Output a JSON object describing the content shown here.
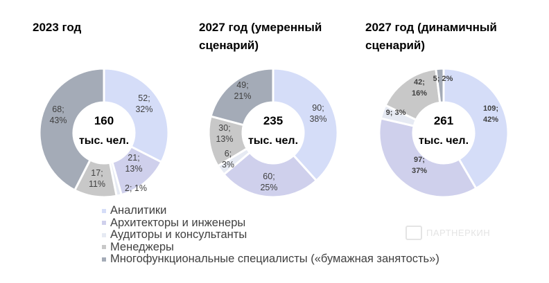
{
  "chart_data": [
    {
      "type": "pie",
      "title": "2023 год",
      "center_value": "160",
      "center_unit": "тыс. чел.",
      "values": [
        52,
        21,
        2,
        17,
        68
      ],
      "labels": [
        "52;\n32%",
        "21;\n13%",
        "2; 1%",
        "17;\n11%",
        "68;\n43%"
      ],
      "bold_labels": false
    },
    {
      "type": "pie",
      "title": "2027 год (умеренный сценарий)",
      "center_value": "235",
      "center_unit": "тыс. чел.",
      "values": [
        90,
        60,
        6,
        30,
        49
      ],
      "labels": [
        "90;\n38%",
        "60;\n25%",
        "6;\n3%",
        "30;\n13%",
        "49;\n21%"
      ],
      "bold_labels": false
    },
    {
      "type": "pie",
      "title": "2027 год (динамичный сценарий)",
      "center_value": "261",
      "center_unit": "тыс. чел.",
      "values": [
        109,
        97,
        9,
        42,
        5
      ],
      "labels": [
        "109;\n42%",
        "97;\n37%",
        "9; 3%",
        "42;\n16%",
        "5; 2%"
      ],
      "bold_labels": true
    }
  ],
  "titles": [
    "2023 год",
    "2027 год (умеренный\nсценарий)",
    "2027 год (динамичный\nсценарий)"
  ],
  "legend": [
    {
      "label": "Аналитики",
      "color": "#d5ddf8"
    },
    {
      "label": "Архитекторы и инженеры",
      "color": "#cfd0ec"
    },
    {
      "label": "Аудиторы и консультанты",
      "color": "#e6eaf3"
    },
    {
      "label": "Менеджеры",
      "color": "#c8c8c8"
    },
    {
      "label": "Многофункциональные специалисты («бумажная занятость»)",
      "color": "#a4abb7"
    }
  ],
  "watermark": "ПАРТНЕРКИН"
}
